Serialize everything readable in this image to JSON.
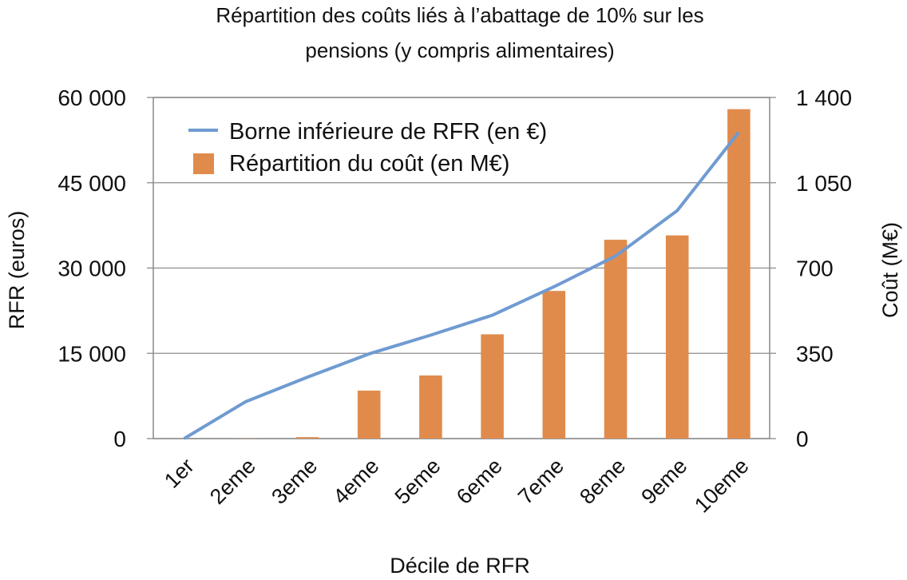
{
  "chart_data": {
    "type": "bar+line",
    "title": "Répartition des coûts liés à l’abattage de 10% sur les pensions (y compris alimentaires)",
    "title_lines": [
      "Répartition des coûts liés à l’abattage de 10% sur les",
      "pensions (y compris alimentaires)"
    ],
    "xlabel": "Décile de RFR",
    "ylabel_left": "RFR (euros)",
    "ylabel_right": "Coût (M€)",
    "categories": [
      "1er",
      "2eme",
      "3eme",
      "4eme",
      "5eme",
      "6eme",
      "7eme",
      "8eme",
      "9eme",
      "10eme"
    ],
    "y_left": {
      "lim": [
        0,
        60000
      ],
      "ticks": [
        0,
        15000,
        30000,
        45000,
        60000
      ],
      "tick_labels": [
        "0",
        "15 000",
        "30 000",
        "45 000",
        "60 000"
      ]
    },
    "y_right": {
      "lim": [
        0,
        1400
      ],
      "ticks": [
        0,
        350,
        700,
        1050,
        1400
      ],
      "tick_labels": [
        "0",
        "350",
        "700",
        "1 050",
        "1 400"
      ]
    },
    "grid": true,
    "legend_position": "top-left",
    "series": [
      {
        "name": "Borne inférieure de RFR (en €)",
        "type": "line",
        "axis": "left",
        "color": "#6f9bd1",
        "values": [
          0,
          6500,
          10800,
          14900,
          18200,
          21700,
          26700,
          32100,
          40100,
          53900
        ]
      },
      {
        "name": "Répartition du coût (en M€)",
        "type": "bar",
        "axis": "right",
        "color": "#e08b4c",
        "values": [
          0,
          1,
          6,
          197,
          259,
          428,
          606,
          816,
          834,
          1352
        ]
      }
    ]
  }
}
